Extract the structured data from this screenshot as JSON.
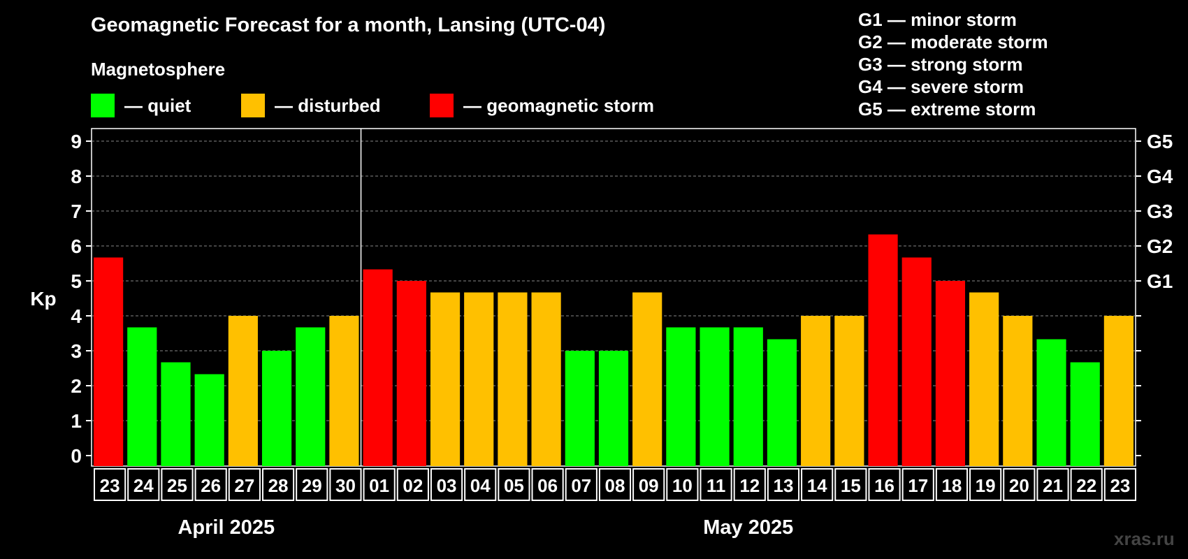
{
  "header": {
    "title": "Geomagnetic Forecast for a month, Lansing (UTC-04)",
    "subtitle": "Magnetosphere"
  },
  "legend": [
    {
      "label": "— quiet",
      "color": "#00ff00"
    },
    {
      "label": "— disturbed",
      "color": "#ffc000"
    },
    {
      "label": "— geomagnetic storm",
      "color": "#ff0000"
    }
  ],
  "storm_scale": [
    "G1 — minor storm",
    "G2 — moderate storm",
    "G3 — strong storm",
    "G4 — severe storm",
    "G5 — extreme storm"
  ],
  "watermark": "xras.ru",
  "chart_data": {
    "type": "bar",
    "ylabel": "Kp",
    "ylim": [
      0,
      9
    ],
    "yticks": [
      "0",
      "1",
      "2",
      "3",
      "4",
      "5",
      "6",
      "7",
      "8",
      "9"
    ],
    "right_axis_labels": [
      {
        "kp": 5,
        "label": "G1"
      },
      {
        "kp": 6,
        "label": "G2"
      },
      {
        "kp": 7,
        "label": "G3"
      },
      {
        "kp": 8,
        "label": "G4"
      },
      {
        "kp": 9,
        "label": "G5"
      }
    ],
    "grid": "dashed horizontal",
    "months": [
      {
        "label": "April 2025",
        "days": 8
      },
      {
        "label": "May 2025",
        "days": 23
      }
    ],
    "categories": [
      "23",
      "24",
      "25",
      "26",
      "27",
      "28",
      "29",
      "30",
      "01",
      "02",
      "03",
      "04",
      "05",
      "06",
      "07",
      "08",
      "09",
      "10",
      "11",
      "12",
      "13",
      "14",
      "15",
      "16",
      "17",
      "18",
      "19",
      "20",
      "21",
      "22",
      "23"
    ],
    "values": [
      5.67,
      3.67,
      2.67,
      2.33,
      4.0,
      3.0,
      3.67,
      4.0,
      5.33,
      5.0,
      4.67,
      4.67,
      4.67,
      4.67,
      3.0,
      3.0,
      4.67,
      3.67,
      3.67,
      3.67,
      3.33,
      4.0,
      4.0,
      6.33,
      5.67,
      5.0,
      4.67,
      4.0,
      3.33,
      2.67,
      4.0
    ],
    "levels": [
      "storm",
      "quiet",
      "quiet",
      "quiet",
      "disturbed",
      "quiet",
      "quiet",
      "disturbed",
      "storm",
      "storm",
      "disturbed",
      "disturbed",
      "disturbed",
      "disturbed",
      "quiet",
      "quiet",
      "disturbed",
      "quiet",
      "quiet",
      "quiet",
      "quiet",
      "disturbed",
      "disturbed",
      "storm",
      "storm",
      "storm",
      "disturbed",
      "disturbed",
      "quiet",
      "quiet",
      "disturbed"
    ],
    "colors": {
      "quiet": "#00ff00",
      "disturbed": "#ffc000",
      "storm": "#ff0000"
    }
  }
}
